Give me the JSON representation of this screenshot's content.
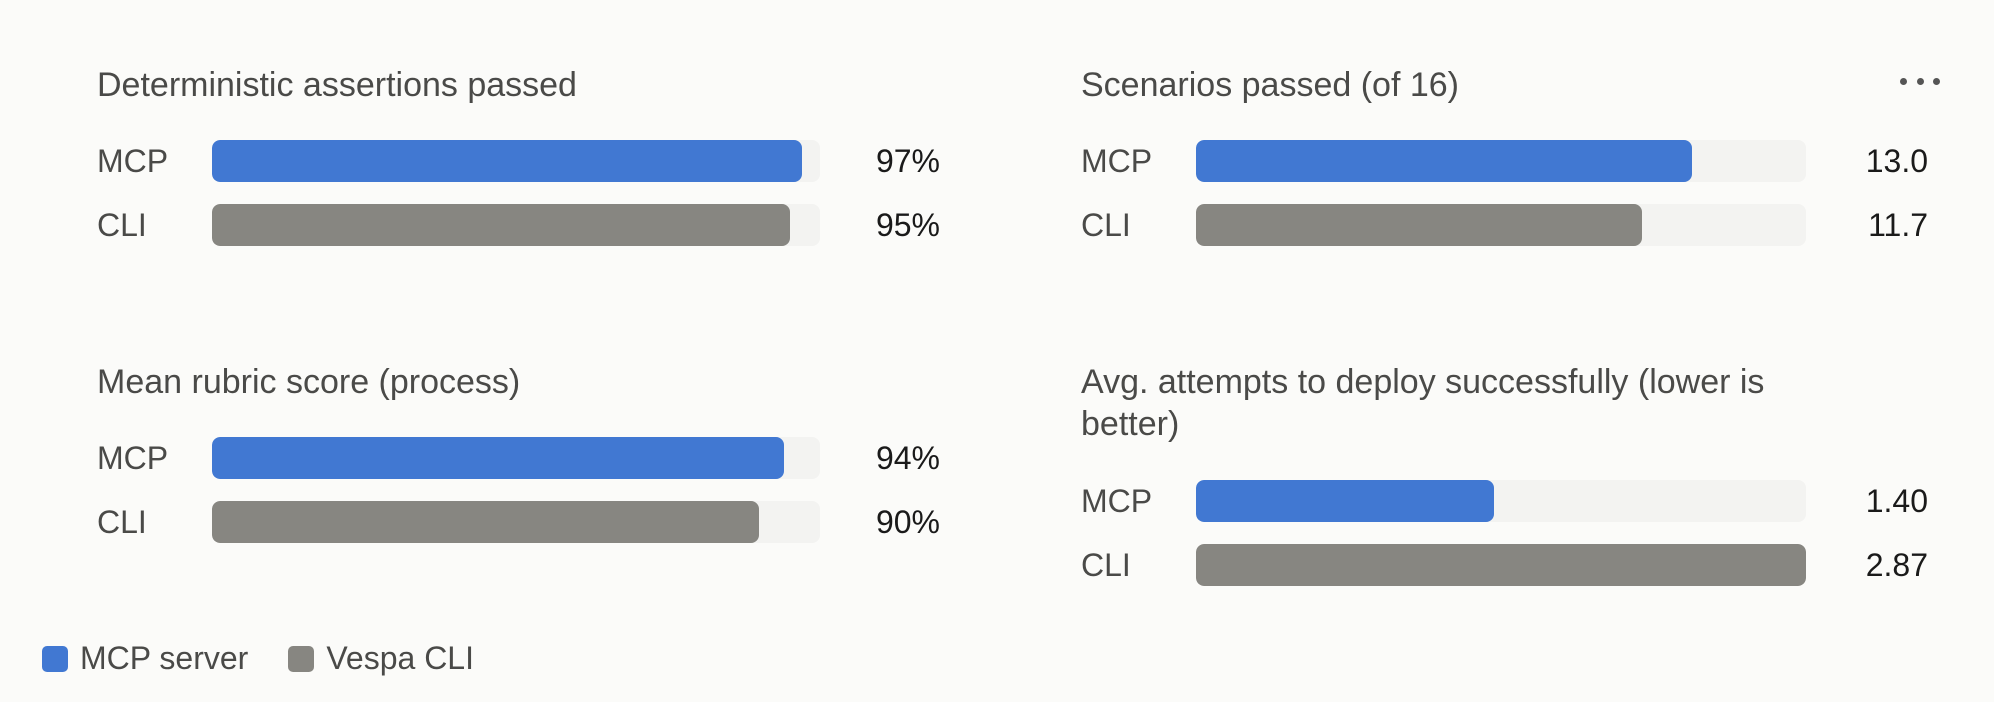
{
  "colors": {
    "mcp": "#4178d2",
    "cli": "#878681",
    "track": "#f3f3f1"
  },
  "menu": {
    "icon": "more-horizontal-icon"
  },
  "legend": [
    {
      "label": "MCP server",
      "color": "#4178d2"
    },
    {
      "label": "Vespa CLI",
      "color": "#878681"
    }
  ],
  "chart_data": [
    {
      "type": "bar",
      "title": "Deterministic assertions passed",
      "categories": [
        "MCP",
        "CLI"
      ],
      "values": [
        97,
        95
      ],
      "value_labels": [
        "97%",
        "95%"
      ],
      "xlim": [
        0,
        100
      ]
    },
    {
      "type": "bar",
      "title": "Scenarios passed (of 16)",
      "categories": [
        "MCP",
        "CLI"
      ],
      "values": [
        13.0,
        11.7
      ],
      "value_labels": [
        "13.0",
        "11.7"
      ],
      "xlim": [
        0,
        16
      ]
    },
    {
      "type": "bar",
      "title": "Mean rubric score (process)",
      "categories": [
        "MCP",
        "CLI"
      ],
      "values": [
        94,
        90
      ],
      "value_labels": [
        "94%",
        "90%"
      ],
      "xlim": [
        0,
        100
      ]
    },
    {
      "type": "bar",
      "title": "Avg. attempts to deploy successfully (lower is better)",
      "categories": [
        "MCP",
        "CLI"
      ],
      "values": [
        1.4,
        2.87
      ],
      "value_labels": [
        "1.40",
        "2.87"
      ],
      "xlim": [
        0,
        2.87
      ]
    }
  ]
}
